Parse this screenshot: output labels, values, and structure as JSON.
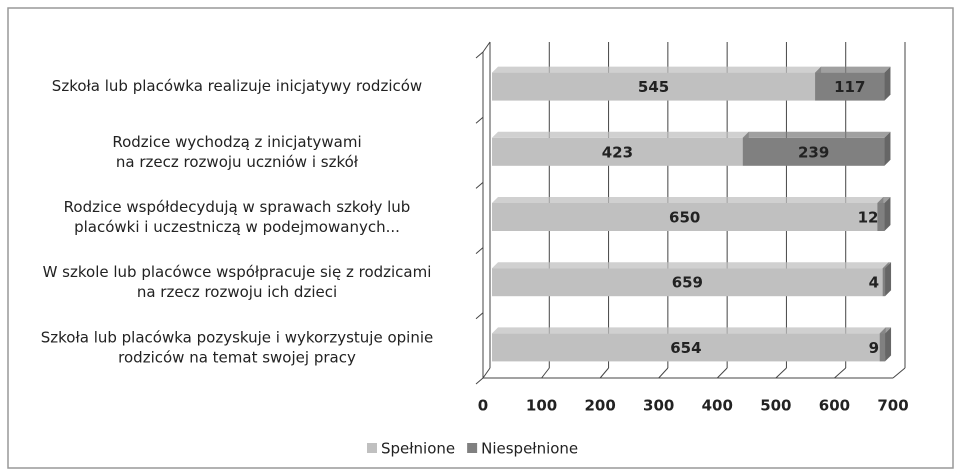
{
  "chart_data": {
    "type": "bar",
    "orientation": "horizontal",
    "stacked": true,
    "categories": [
      "Szkoła lub placówka realizuje inicjatywy rodziców",
      "Rodzice wychodzą z inicjatywami\nna rzecz rozwoju uczniów i szkół",
      "Rodzice współdecydują w sprawach szkoły lub\nplacówki i uczestniczą w podejmowanych...",
      "W szkole lub placówce współpracuje się z rodzicami\nna rzecz rozwoju ich dzieci",
      "Szkoła lub placówka pozyskuje i wykorzystuje opinie\nrodziców na temat swojej pracy"
    ],
    "series": [
      {
        "name": "Spełnione",
        "color": "#c0c0c0",
        "values": [
          545,
          423,
          650,
          659,
          654
        ]
      },
      {
        "name": "Niespełnione",
        "color": "#808080",
        "values": [
          117,
          239,
          12,
          4,
          9
        ]
      }
    ],
    "xlim": [
      0,
      700
    ],
    "xticks": [
      0,
      100,
      200,
      300,
      400,
      500,
      600,
      700
    ],
    "grid": true,
    "legend": "bottom"
  }
}
